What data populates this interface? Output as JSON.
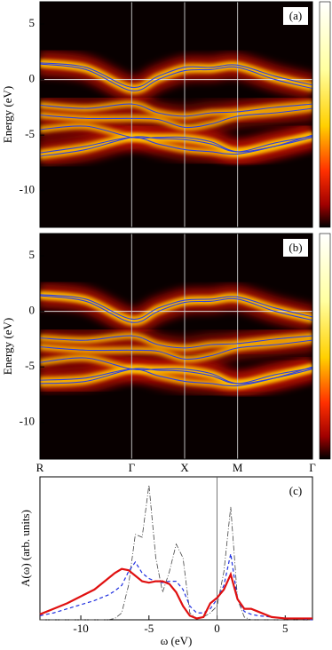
{
  "chart_data": [
    {
      "type": "bands",
      "label": "(a)",
      "ylabel": "Energy (eV)",
      "ylim": [
        -13.3,
        7.0
      ],
      "yticks": [
        5,
        0,
        -5,
        -10
      ],
      "x": [
        0,
        0.433,
        0.866,
        1.116,
        1.366,
        1.616,
        1.866,
        2.22,
        2.573
      ],
      "xlim": [
        0,
        2.573
      ],
      "series": [
        {
          "color": "#3040e0",
          "values": [
            1.5,
            1.1,
            -0.7,
            0.3,
            1.1,
            1.1,
            1.3,
            0.3,
            -0.5
          ]
        },
        {
          "color": "#3040e0",
          "values": [
            1.4,
            0.9,
            -1.0,
            0.0,
            0.8,
            0.9,
            1.1,
            0.0,
            -0.8
          ]
        },
        {
          "color": "#3040e0",
          "values": [
            -2.3,
            -2.6,
            -2.2,
            -3.0,
            -3.3,
            -3.0,
            -2.9,
            -2.5,
            -2.2
          ]
        },
        {
          "color": "#3040e0",
          "values": [
            -3.2,
            -3.5,
            -3.5,
            -3.6,
            -4.3,
            -4.0,
            -3.3,
            -3.0,
            -2.6
          ]
        },
        {
          "color": "#3040e0",
          "values": [
            -4.5,
            -4.2,
            -5.2,
            -5.2,
            -5.2,
            -5.6,
            -6.5,
            -6.0,
            -5.2
          ]
        },
        {
          "color": "#3040e0",
          "values": [
            -6.6,
            -6.0,
            -5.2,
            -5.8,
            -6.3,
            -6.5,
            -6.7,
            -6.0,
            -5.0
          ]
        },
        {
          "color": "#3040e0",
          "values": [
            -6.9,
            -6.3,
            -5.2,
            -5.3,
            -5.4,
            -5.8,
            -6.5,
            -5.7,
            -5.1
          ]
        }
      ]
    },
    {
      "type": "bands",
      "label": "(b)",
      "ylabel": "Energy (eV)",
      "ylim": [
        -13.3,
        7.0
      ],
      "yticks": [
        5,
        0,
        -5,
        -10
      ],
      "x": [
        0,
        0.433,
        0.866,
        1.116,
        1.366,
        1.616,
        1.866,
        2.22,
        2.573
      ],
      "xlim": [
        0,
        2.573
      ],
      "xticks": [
        {
          "value": 0,
          "label": "R"
        },
        {
          "value": 0.866,
          "label": "Γ"
        },
        {
          "value": 1.366,
          "label": "X"
        },
        {
          "value": 1.866,
          "label": "M"
        },
        {
          "value": 2.573,
          "label": "Γ"
        }
      ],
      "series": [
        {
          "color": "#3040e0",
          "values": [
            1.5,
            1.1,
            -0.7,
            0.3,
            1.0,
            1.1,
            1.3,
            0.3,
            -0.5
          ]
        },
        {
          "color": "#3040e0",
          "values": [
            1.4,
            0.9,
            -1.0,
            0.0,
            0.8,
            0.9,
            1.1,
            0.0,
            -0.8
          ]
        },
        {
          "color": "#3040e0",
          "values": [
            -2.4,
            -2.6,
            -2.2,
            -3.0,
            -3.3,
            -3.0,
            -2.9,
            -2.5,
            -2.2
          ]
        },
        {
          "color": "#3040e0",
          "values": [
            -3.2,
            -3.5,
            -3.5,
            -3.6,
            -4.3,
            -4.0,
            -3.3,
            -3.0,
            -2.6
          ]
        },
        {
          "color": "#3040e0",
          "values": [
            -4.6,
            -4.2,
            -5.2,
            -5.2,
            -5.2,
            -5.6,
            -6.5,
            -6.0,
            -5.2
          ]
        },
        {
          "color": "#3040e0",
          "values": [
            -6.2,
            -6.0,
            -5.2,
            -5.8,
            -6.3,
            -6.5,
            -6.7,
            -6.0,
            -5.0
          ]
        },
        {
          "color": "#3040e0",
          "values": [
            -6.5,
            -6.3,
            -5.2,
            -5.3,
            -5.4,
            -5.8,
            -6.5,
            -5.7,
            -5.1
          ]
        }
      ]
    },
    {
      "type": "line",
      "label": "(c)",
      "xlabel": "ω (eV)",
      "ylabel": "A(ω) (arb. units)",
      "xlim": [
        -13,
        7
      ],
      "xticks": [
        -10,
        -5,
        0,
        5
      ],
      "ylim": [
        0,
        1
      ],
      "x": [
        -13,
        -12,
        -11,
        -10,
        -9,
        -8,
        -7.5,
        -7,
        -6.5,
        -6,
        -5.5,
        -5,
        -4.5,
        -4,
        -3.5,
        -3,
        -2.5,
        -2,
        -1.5,
        -1,
        -0.5,
        0,
        0.5,
        1,
        1.5,
        2,
        2.5,
        3,
        4,
        5,
        6,
        7
      ],
      "series": [
        {
          "color": "#444444",
          "dash": "6,2,1,2",
          "width": 0.8,
          "values": [
            0,
            0,
            0,
            0,
            0,
            0,
            0.01,
            0.05,
            0.25,
            0.62,
            0.6,
            0.98,
            0.45,
            0.2,
            0.35,
            0.55,
            0.45,
            0.05,
            0.01,
            0.02,
            0.05,
            0.1,
            0.35,
            0.82,
            0.15,
            0.02,
            0,
            0,
            0,
            0,
            0,
            0
          ]
        },
        {
          "color": "#2030e0",
          "dash": "4,3",
          "width": 1.2,
          "values": [
            0.03,
            0.05,
            0.08,
            0.11,
            0.14,
            0.18,
            0.21,
            0.25,
            0.35,
            0.42,
            0.34,
            0.3,
            0.28,
            0.27,
            0.28,
            0.28,
            0.22,
            0.1,
            0.05,
            0.05,
            0.08,
            0.15,
            0.25,
            0.48,
            0.15,
            0.06,
            0.04,
            0.03,
            0.02,
            0.01,
            0.01,
            0
          ]
        },
        {
          "color": "#e01010",
          "dash": "none",
          "width": 2.2,
          "values": [
            0.04,
            0.08,
            0.12,
            0.17,
            0.22,
            0.3,
            0.34,
            0.37,
            0.36,
            0.32,
            0.28,
            0.27,
            0.28,
            0.28,
            0.26,
            0.2,
            0.1,
            0.03,
            0.01,
            0.02,
            0.12,
            0.16,
            0.22,
            0.33,
            0.15,
            0.08,
            0.08,
            0.06,
            0.02,
            0.01,
            0.01,
            0.01
          ]
        }
      ]
    }
  ]
}
